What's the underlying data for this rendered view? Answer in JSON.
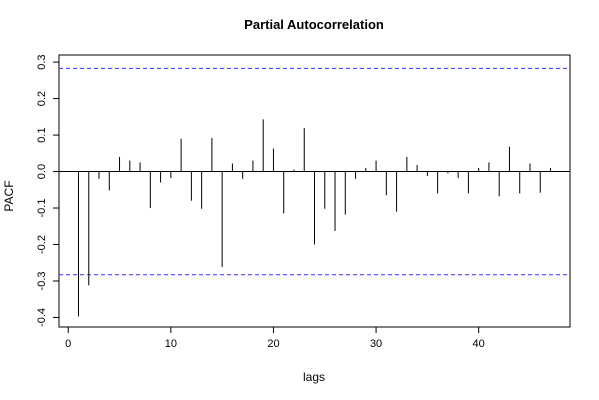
{
  "chart_data": {
    "type": "bar",
    "title": "Partial Autocorrelation",
    "xlabel": "lags",
    "ylabel": "PACF",
    "xlim": [
      -0.9,
      48.9
    ],
    "ylim": [
      -0.4262,
      0.3195
    ],
    "x_ticks": [
      0,
      10,
      20,
      30,
      40
    ],
    "y_ticks": [
      -0.4,
      -0.3,
      -0.2,
      -0.1,
      0.0,
      0.1,
      0.2,
      0.3
    ],
    "y_tick_labels": [
      "-0.4",
      "-0.3",
      "-0.2",
      "-0.1",
      "0.0",
      "0.1",
      "0.2",
      "0.3"
    ],
    "confidence_bound": 0.283,
    "confidence_style": "dashed",
    "confidence_color": "#3333ff",
    "bar_color": "#000000",
    "grid": false,
    "lags": [
      1,
      2,
      3,
      4,
      5,
      6,
      7,
      8,
      9,
      10,
      11,
      12,
      13,
      14,
      15,
      16,
      17,
      18,
      19,
      20,
      21,
      22,
      23,
      24,
      25,
      26,
      27,
      28,
      29,
      30,
      31,
      32,
      33,
      34,
      35,
      36,
      37,
      38,
      39,
      40,
      41,
      42,
      43,
      44,
      45,
      46,
      47
    ],
    "values": [
      -0.397,
      -0.312,
      -0.02,
      -0.052,
      0.04,
      0.03,
      0.025,
      -0.1,
      -0.03,
      -0.018,
      0.09,
      -0.08,
      -0.102,
      0.092,
      -0.262,
      0.022,
      -0.02,
      0.03,
      0.143,
      0.063,
      -0.115,
      0.005,
      0.119,
      -0.2,
      -0.102,
      -0.163,
      -0.118,
      -0.02,
      0.01,
      0.03,
      -0.065,
      -0.11,
      0.04,
      0.018,
      -0.012,
      -0.06,
      -0.005,
      -0.018,
      -0.06,
      0.01,
      0.025,
      -0.068,
      0.068,
      -0.06,
      0.022,
      -0.058,
      0.01
    ]
  }
}
